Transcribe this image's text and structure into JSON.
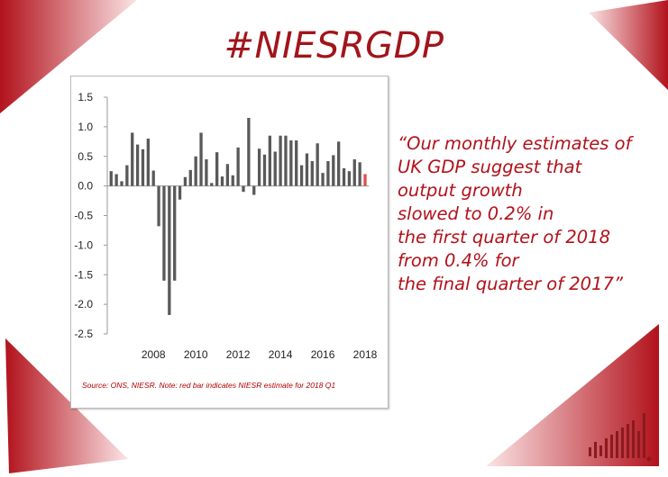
{
  "header": {
    "title": "#NIESRGDP"
  },
  "quote": {
    "lines": [
      "“Our monthly estimates of",
      "UK GDP suggest that",
      "output growth",
      "slowed to 0.2% in",
      "the first quarter of 2018",
      "from 0.4% for",
      "the final quarter of 2017”"
    ]
  },
  "source_note": "Source: ONS, NIESR. Note: red bar indicates NIESR estimate for 2018 Q1",
  "colors": {
    "accent": "#a1151b",
    "bar": "#595959",
    "estimate_bar": "#e0504a",
    "corner_light": "#f7d0d2"
  },
  "chart_data": {
    "type": "bar",
    "title": "",
    "xlabel": "",
    "ylabel": "",
    "ylim": [
      -2.5,
      1.5
    ],
    "yticks": [
      "1.5",
      "1.0",
      "0.5",
      "0.0",
      "-0.5",
      "-1.0",
      "-1.5",
      "-2.0",
      "-2.5"
    ],
    "ytick_values": [
      1.5,
      1.0,
      0.5,
      0.0,
      -0.5,
      -1.0,
      -1.5,
      -2.0,
      -2.5
    ],
    "xticks": [
      "2008",
      "2010",
      "2012",
      "2014",
      "2016",
      "2018"
    ],
    "xtick_positions": [
      2008,
      2010,
      2012,
      2014,
      2016,
      2018
    ],
    "x_start": 2006.0,
    "x_step": 0.25,
    "grid": false,
    "legend": "none",
    "series": [
      {
        "values": [
          0.25,
          0.2,
          0.08,
          0.35,
          0.9,
          0.7,
          0.62,
          0.8,
          0.26,
          -0.68,
          -1.6,
          -2.18,
          -1.6,
          -0.23,
          0.15,
          0.27,
          0.5,
          0.9,
          0.45,
          0.05,
          0.57,
          0.16,
          0.37,
          0.18,
          0.65,
          -0.1,
          1.15,
          -0.15,
          0.63,
          0.53,
          0.85,
          0.58,
          0.85,
          0.85,
          0.77,
          0.77,
          0.35,
          0.55,
          0.42,
          0.72,
          0.22,
          0.42,
          0.52,
          0.75,
          0.3,
          0.25,
          0.45,
          0.4,
          0.2
        ],
        "highlight_last": true
      }
    ]
  }
}
